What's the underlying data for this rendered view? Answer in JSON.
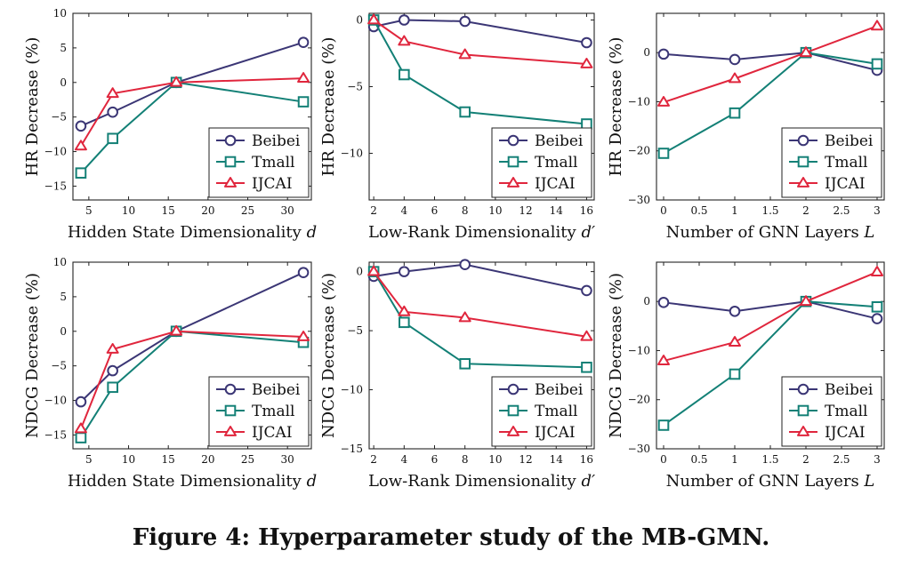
{
  "caption": "Figure 4: Hyperparameter study of the MB-GMN.",
  "colors": {
    "Beibei": "#3b3675",
    "Tmall": "#138076",
    "IJCAI": "#e0263d"
  },
  "chart_data": [
    {
      "type": "line",
      "id": "hr-hidden",
      "xlabel": "Hidden State Dimensionality",
      "xlabel_var": "d",
      "ylabel": "HR Decrease (%)",
      "xlim": [
        3,
        33
      ],
      "ylim": [
        -17,
        10
      ],
      "xticks": [
        5,
        10,
        15,
        20,
        25,
        30
      ],
      "yticks": [
        -15,
        -10,
        -5,
        0,
        5,
        10
      ],
      "x": [
        4,
        8,
        16,
        32
      ],
      "legend": "bottom-right",
      "series": [
        {
          "name": "Beibei",
          "marker": "circle",
          "values": [
            -6.3,
            -4.3,
            0,
            5.8
          ]
        },
        {
          "name": "Tmall",
          "marker": "square",
          "values": [
            -13.1,
            -8.1,
            0,
            -2.8
          ]
        },
        {
          "name": "IJCAI",
          "marker": "triangle",
          "values": [
            -9.2,
            -1.6,
            0,
            0.6
          ]
        }
      ]
    },
    {
      "type": "line",
      "id": "hr-lowrank",
      "xlabel": "Low-Rank Dimensionality",
      "xlabel_var": "d′",
      "ylabel": "HR Decrease (%)",
      "xlim": [
        1.7,
        16.5
      ],
      "ylim": [
        -13.5,
        0.5
      ],
      "xticks": [
        2,
        4,
        6,
        8,
        10,
        12,
        14,
        16
      ],
      "yticks": [
        -10,
        -5,
        0
      ],
      "x": [
        2,
        4,
        8,
        16
      ],
      "legend": "bottom-right",
      "series": [
        {
          "name": "Beibei",
          "marker": "circle",
          "values": [
            -0.5,
            0,
            -0.1,
            -1.7
          ]
        },
        {
          "name": "Tmall",
          "marker": "square",
          "values": [
            0,
            -4.1,
            -6.9,
            -7.8
          ]
        },
        {
          "name": "IJCAI",
          "marker": "triangle",
          "values": [
            0,
            -1.6,
            -2.6,
            -3.3
          ]
        }
      ]
    },
    {
      "type": "line",
      "id": "hr-gnn",
      "xlabel": "Number of GNN Layers",
      "xlabel_var": "L",
      "ylabel": "HR Decrease (%)",
      "xlim": [
        -0.1,
        3.1
      ],
      "ylim": [
        -30,
        8
      ],
      "xticks": [
        0,
        0.5,
        1,
        1.5,
        2,
        2.5,
        3
      ],
      "yticks": [
        -30,
        -20,
        -10,
        0
      ],
      "x": [
        0,
        1,
        2,
        3
      ],
      "legend": "bottom-right",
      "series": [
        {
          "name": "Beibei",
          "marker": "circle",
          "values": [
            -0.3,
            -1.4,
            0,
            -3.6
          ]
        },
        {
          "name": "Tmall",
          "marker": "square",
          "values": [
            -20.5,
            -12.3,
            0,
            -2.3
          ]
        },
        {
          "name": "IJCAI",
          "marker": "triangle",
          "values": [
            -10.1,
            -5.3,
            0,
            5.4
          ]
        }
      ]
    },
    {
      "type": "line",
      "id": "ndcg-hidden",
      "xlabel": "Hidden State Dimensionality",
      "xlabel_var": "d",
      "ylabel": "NDCG Decrease (%)",
      "xlim": [
        3,
        33
      ],
      "ylim": [
        -17,
        10
      ],
      "xticks": [
        5,
        10,
        15,
        20,
        25,
        30
      ],
      "yticks": [
        -15,
        -10,
        -5,
        0,
        5,
        10
      ],
      "x": [
        4,
        8,
        16,
        32
      ],
      "legend": "bottom-right",
      "series": [
        {
          "name": "Beibei",
          "marker": "circle",
          "values": [
            -10.2,
            -5.7,
            0,
            8.5
          ]
        },
        {
          "name": "Tmall",
          "marker": "square",
          "values": [
            -15.4,
            -8.1,
            0,
            -1.6
          ]
        },
        {
          "name": "IJCAI",
          "marker": "triangle",
          "values": [
            -14.1,
            -2.6,
            0,
            -0.8
          ]
        }
      ]
    },
    {
      "type": "line",
      "id": "ndcg-lowrank",
      "xlabel": "Low-Rank Dimensionality",
      "xlabel_var": "d′",
      "ylabel": "NDCG Decrease (%)",
      "xlim": [
        1.7,
        16.5
      ],
      "ylim": [
        -15,
        0.8
      ],
      "xticks": [
        2,
        4,
        6,
        8,
        10,
        12,
        14,
        16
      ],
      "yticks": [
        -15,
        -10,
        -5,
        0
      ],
      "x": [
        2,
        4,
        8,
        16
      ],
      "legend": "bottom-right",
      "series": [
        {
          "name": "Beibei",
          "marker": "circle",
          "values": [
            -0.4,
            0,
            0.6,
            -1.6
          ]
        },
        {
          "name": "Tmall",
          "marker": "square",
          "values": [
            0,
            -4.3,
            -7.8,
            -8.1
          ]
        },
        {
          "name": "IJCAI",
          "marker": "triangle",
          "values": [
            0,
            -3.4,
            -3.9,
            -5.5
          ]
        }
      ]
    },
    {
      "type": "line",
      "id": "ndcg-gnn",
      "xlabel": "Number of GNN Layers",
      "xlabel_var": "L",
      "ylabel": "NDCG Decrease (%)",
      "xlim": [
        -0.1,
        3.1
      ],
      "ylim": [
        -30,
        8
      ],
      "xticks": [
        0,
        0.5,
        1,
        1.5,
        2,
        2.5,
        3
      ],
      "yticks": [
        -30,
        -20,
        -10,
        0
      ],
      "x": [
        0,
        1,
        2,
        3
      ],
      "legend": "bottom-right",
      "series": [
        {
          "name": "Beibei",
          "marker": "circle",
          "values": [
            -0.2,
            -2.0,
            0,
            -3.5
          ]
        },
        {
          "name": "Tmall",
          "marker": "square",
          "values": [
            -25.2,
            -14.8,
            0,
            -1.1
          ]
        },
        {
          "name": "IJCAI",
          "marker": "triangle",
          "values": [
            -12.1,
            -8.3,
            0,
            6.0
          ]
        }
      ]
    }
  ]
}
